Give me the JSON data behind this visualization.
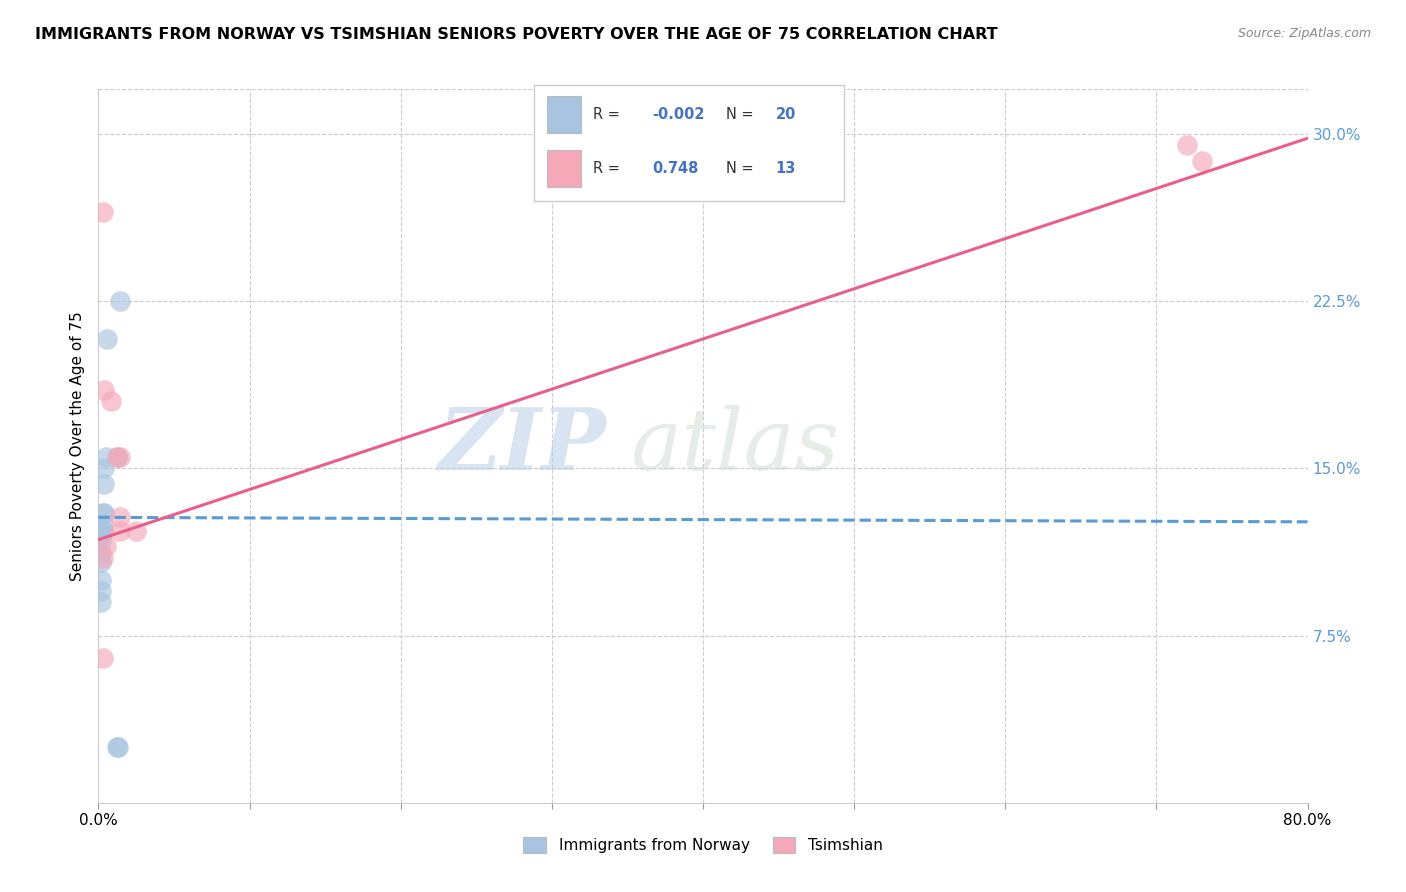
{
  "title": "IMMIGRANTS FROM NORWAY VS TSIMSHIAN SENIORS POVERTY OVER THE AGE OF 75 CORRELATION CHART",
  "source": "Source: ZipAtlas.com",
  "ylabel": "Seniors Poverty Over the Age of 75",
  "xlabel": "",
  "xlim": [
    0.0,
    0.8
  ],
  "ylim": [
    0.0,
    0.32
  ],
  "xticks": [
    0.0,
    0.1,
    0.2,
    0.3,
    0.4,
    0.5,
    0.6,
    0.7,
    0.8
  ],
  "xticklabels": [
    "0.0%",
    "",
    "",
    "",
    "",
    "",
    "",
    "",
    "80.0%"
  ],
  "yticks_right": [
    0.075,
    0.15,
    0.225,
    0.3
  ],
  "ytick_right_labels": [
    "7.5%",
    "15.0%",
    "22.5%",
    "30.0%"
  ],
  "legend_norway_R": "-0.002",
  "legend_norway_N": "20",
  "legend_tsimshian_R": "0.748",
  "legend_tsimshian_N": "13",
  "norway_color": "#a8c4e0",
  "tsimshian_color": "#f4a8b8",
  "norway_line_color": "#5b9bd5",
  "tsimshian_line_color": "#e8608a",
  "background_color": "#ffffff",
  "grid_color": "#cccccc",
  "watermark_zip": "ZIP",
  "watermark_atlas": "atlas",
  "norway_x": [
    0.006,
    0.014,
    0.012,
    0.005,
    0.004,
    0.004,
    0.004,
    0.003,
    0.003,
    0.003,
    0.003,
    0.002,
    0.002,
    0.002,
    0.002,
    0.002,
    0.002,
    0.002,
    0.012,
    0.013
  ],
  "norway_y": [
    0.208,
    0.225,
    0.155,
    0.155,
    0.143,
    0.15,
    0.13,
    0.13,
    0.125,
    0.122,
    0.122,
    0.12,
    0.118,
    0.112,
    0.108,
    0.095,
    0.09,
    0.1,
    0.025,
    0.025
  ],
  "tsimshian_x": [
    0.003,
    0.004,
    0.008,
    0.012,
    0.014,
    0.014,
    0.014,
    0.005,
    0.003,
    0.003,
    0.025,
    0.72,
    0.73
  ],
  "tsimshian_y": [
    0.265,
    0.185,
    0.18,
    0.155,
    0.155,
    0.128,
    0.122,
    0.115,
    0.11,
    0.065,
    0.122,
    0.295,
    0.288
  ],
  "norway_line_x": [
    0.0,
    0.8
  ],
  "norway_line_y": [
    0.128,
    0.126
  ],
  "tsimshian_line_x": [
    0.0,
    0.8
  ],
  "tsimshian_line_y": [
    0.118,
    0.298
  ]
}
